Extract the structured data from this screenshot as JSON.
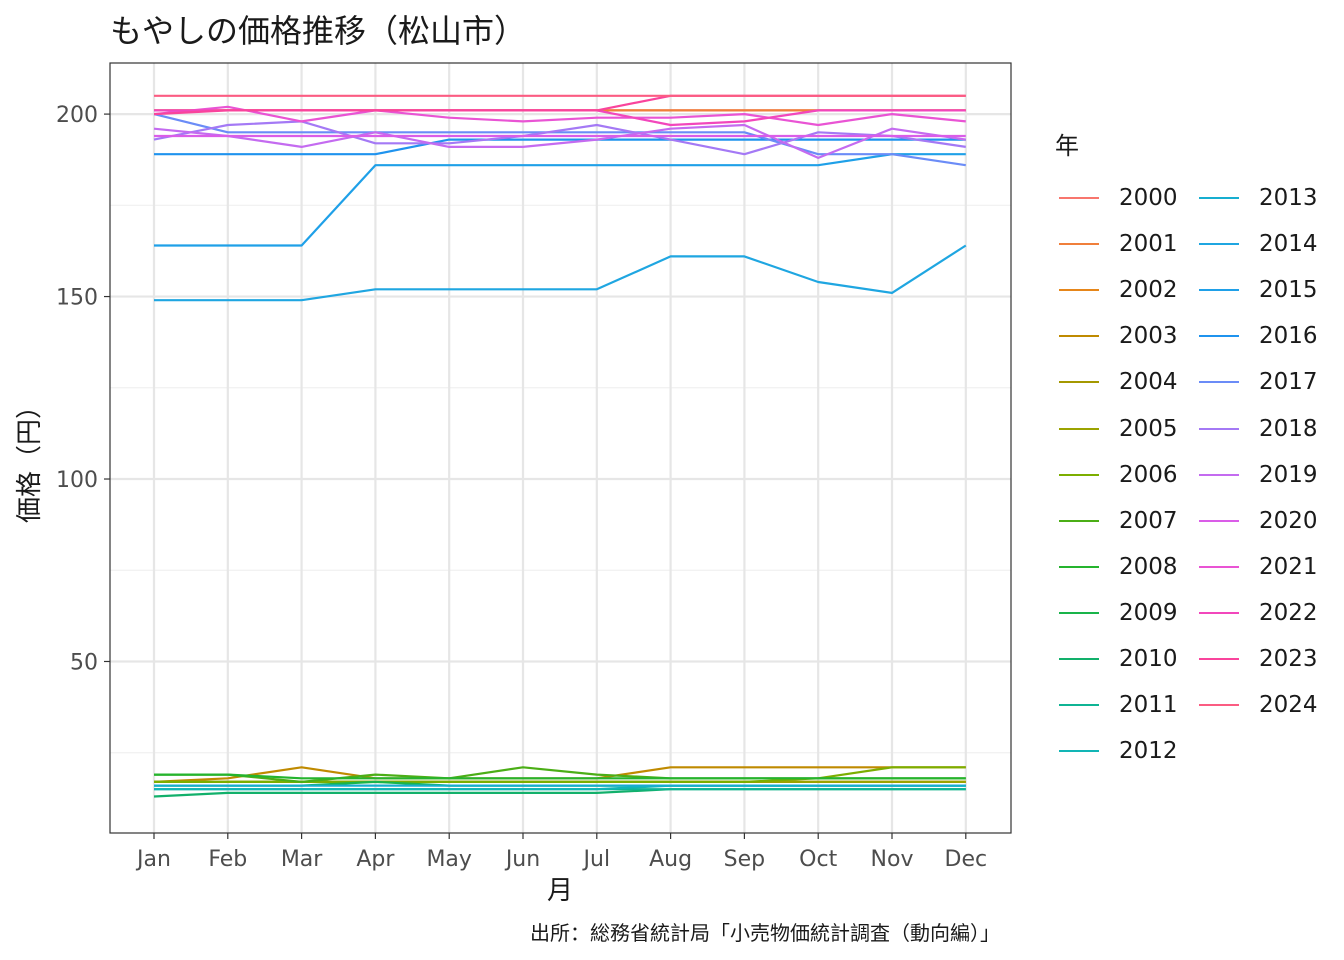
{
  "chart_data": {
    "type": "line",
    "title": "もやしの価格推移（松山市）",
    "xlabel": "月",
    "ylabel": "価格（円）",
    "caption": "出所：総務省統計局「小売物価統計調査（動向編）」",
    "legend_title": "年",
    "legend_position": "right",
    "grid": true,
    "categories": [
      "Jan",
      "Feb",
      "Mar",
      "Apr",
      "May",
      "Jun",
      "Jul",
      "Aug",
      "Sep",
      "Oct",
      "Nov",
      "Dec"
    ],
    "ylim": [
      3,
      214
    ],
    "yticks": [
      50,
      100,
      150,
      200
    ],
    "series": [
      {
        "name": "2000",
        "color": "#F8766D",
        "values": [
          201,
          201,
          201,
          201,
          201,
          201,
          201,
          201,
          201,
          201,
          201,
          201
        ]
      },
      {
        "name": "2001",
        "color": "#F07F3B",
        "values": [
          201,
          201,
          201,
          201,
          201,
          201,
          201,
          201,
          201,
          201,
          201,
          201
        ]
      },
      {
        "name": "2002",
        "color": "#E6861A",
        "values": [
          17,
          17,
          17,
          17,
          17,
          17,
          17,
          17,
          17,
          17,
          17,
          17
        ]
      },
      {
        "name": "2003",
        "color": "#BF8A00",
        "values": [
          17,
          18,
          21,
          18,
          18,
          18,
          18,
          21,
          21,
          21,
          21,
          21
        ]
      },
      {
        "name": "2004",
        "color": "#A49800",
        "values": [
          17,
          17,
          17,
          17,
          17,
          17,
          17,
          17,
          17,
          17,
          17,
          17
        ]
      },
      {
        "name": "2005",
        "color": "#9BA300",
        "values": [
          17,
          17,
          17,
          17,
          17,
          17,
          17,
          17,
          17,
          17,
          17,
          17
        ]
      },
      {
        "name": "2006",
        "color": "#7CAE00",
        "values": [
          17,
          17,
          17,
          17,
          17,
          17,
          17,
          17,
          17,
          18,
          21,
          21
        ]
      },
      {
        "name": "2007",
        "color": "#4BAE16",
        "values": [
          19,
          19,
          17,
          19,
          18,
          21,
          19,
          18,
          18,
          18,
          18,
          18
        ]
      },
      {
        "name": "2008",
        "color": "#25B42E",
        "values": [
          19,
          19,
          18,
          18,
          18,
          18,
          18,
          18,
          18,
          18,
          18,
          18
        ]
      },
      {
        "name": "2009",
        "color": "#19B44A",
        "values": [
          16,
          16,
          16,
          17,
          16,
          16,
          16,
          16,
          16,
          16,
          16,
          16
        ]
      },
      {
        "name": "2010",
        "color": "#12B06B",
        "values": [
          13,
          14,
          14,
          14,
          14,
          14,
          14,
          15,
          15,
          15,
          15,
          15
        ]
      },
      {
        "name": "2011",
        "color": "#0FB494",
        "values": [
          15,
          15,
          15,
          15,
          15,
          15,
          15,
          15,
          15,
          15,
          15,
          15
        ]
      },
      {
        "name": "2012",
        "color": "#12B5B5",
        "values": [
          15,
          15,
          15,
          15,
          15,
          15,
          15,
          16,
          16,
          16,
          16,
          16
        ]
      },
      {
        "name": "2013",
        "color": "#17AED0",
        "values": [
          16,
          16,
          16,
          16,
          16,
          16,
          16,
          16,
          16,
          16,
          16,
          16
        ]
      },
      {
        "name": "2014",
        "color": "#1FA6E1",
        "values": [
          149,
          149,
          149,
          152,
          152,
          152,
          152,
          161,
          161,
          154,
          151,
          164
        ]
      },
      {
        "name": "2015",
        "color": "#1FA0E8",
        "values": [
          164,
          164,
          164,
          186,
          186,
          186,
          186,
          186,
          186,
          186,
          189,
          189
        ]
      },
      {
        "name": "2016",
        "color": "#1F93EE",
        "values": [
          189,
          189,
          189,
          189,
          193,
          193,
          193,
          193,
          193,
          193,
          193,
          193
        ]
      },
      {
        "name": "2017",
        "color": "#6B8CF7",
        "values": [
          200,
          195,
          195,
          195,
          195,
          195,
          195,
          195,
          195,
          189,
          189,
          186
        ]
      },
      {
        "name": "2018",
        "color": "#A479F5",
        "values": [
          193,
          197,
          198,
          192,
          192,
          194,
          197,
          193,
          189,
          195,
          194,
          191
        ]
      },
      {
        "name": "2019",
        "color": "#C46BF0",
        "values": [
          196,
          194,
          191,
          195,
          191,
          191,
          193,
          196,
          197,
          188,
          196,
          193
        ]
      },
      {
        "name": "2020",
        "color": "#DA5DE8",
        "values": [
          194,
          194,
          194,
          194,
          194,
          194,
          194,
          194,
          194,
          194,
          194,
          194
        ]
      },
      {
        "name": "2021",
        "color": "#E954D4",
        "values": [
          200,
          202,
          198,
          201,
          199,
          198,
          199,
          199,
          200,
          197,
          200,
          198
        ]
      },
      {
        "name": "2022",
        "color": "#F247BC",
        "values": [
          201,
          201,
          201,
          201,
          201,
          201,
          201,
          197,
          198,
          201,
          201,
          201
        ]
      },
      {
        "name": "2023",
        "color": "#F9449C",
        "values": [
          200,
          201,
          201,
          201,
          201,
          201,
          201,
          205,
          205,
          205,
          205,
          205
        ]
      },
      {
        "name": "2024",
        "color": "#FB5C82",
        "values": [
          205,
          205,
          205,
          205,
          205,
          205,
          205,
          205,
          205,
          205,
          205,
          205
        ]
      }
    ]
  }
}
